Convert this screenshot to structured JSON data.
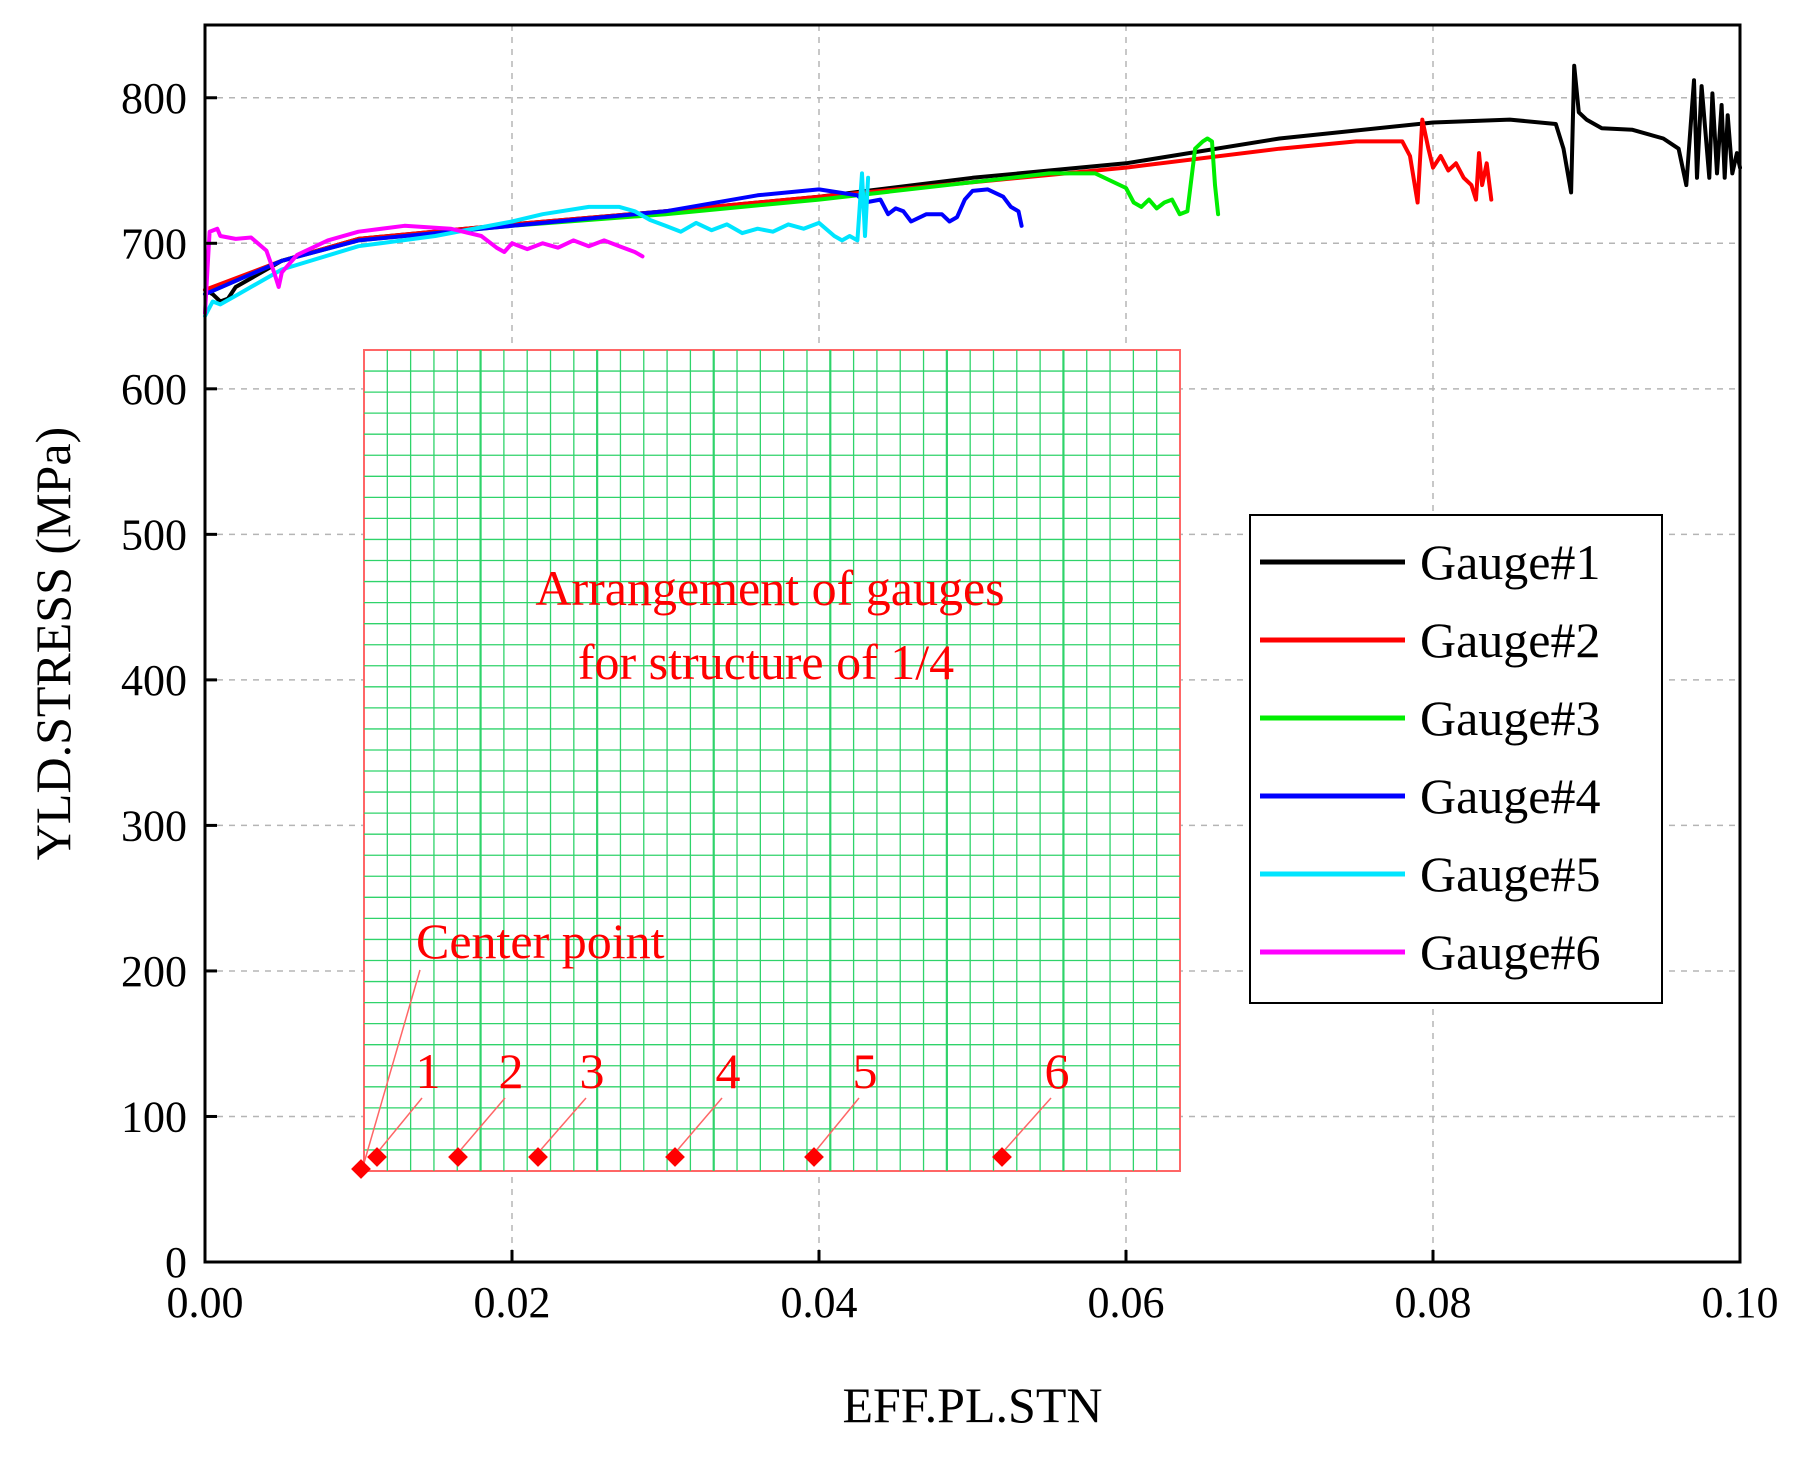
{
  "chart_data": {
    "type": "line",
    "title": "",
    "xlabel": "EFF.PL.STN",
    "ylabel": "YLD.STRESS (MPa)",
    "xlim": [
      0,
      0.1
    ],
    "ylim": [
      0,
      850
    ],
    "xticks": [
      0,
      0.02,
      0.04,
      0.06,
      0.08,
      0.1
    ],
    "xtick_labels": [
      "0.00",
      "0.02",
      "0.04",
      "0.06",
      "0.08",
      "0.10"
    ],
    "yticks": [
      0,
      100,
      200,
      300,
      400,
      500,
      600,
      700,
      800
    ],
    "ytick_labels": [
      "0",
      "100",
      "200",
      "300",
      "400",
      "500",
      "600",
      "700",
      "800"
    ],
    "grid": true,
    "legend_position": "right",
    "series": [
      {
        "name": "Gauge#1",
        "color": "#000000",
        "x": [
          0,
          0.0005,
          0.001,
          0.0015,
          0.002,
          0.005,
          0.01,
          0.02,
          0.03,
          0.04,
          0.05,
          0.06,
          0.07,
          0.08,
          0.085,
          0.088,
          0.0885,
          0.089,
          0.0892,
          0.0895,
          0.09,
          0.091,
          0.093,
          0.095,
          0.096,
          0.0965,
          0.097,
          0.0972,
          0.0975,
          0.098,
          0.0982,
          0.0985,
          0.0988,
          0.099,
          0.0992,
          0.0995,
          0.0998,
          0.1
        ],
        "y": [
          668,
          665,
          660,
          662,
          670,
          688,
          703,
          713,
          722,
          732,
          745,
          755,
          772,
          783,
          785,
          782,
          765,
          735,
          822,
          790,
          785,
          779,
          778,
          772,
          765,
          740,
          812,
          745,
          808,
          745,
          803,
          748,
          795,
          745,
          788,
          748,
          762,
          752
        ]
      },
      {
        "name": "Gauge#2",
        "color": "#ff0000",
        "x": [
          0,
          0.005,
          0.01,
          0.02,
          0.03,
          0.04,
          0.05,
          0.06,
          0.07,
          0.075,
          0.078,
          0.0785,
          0.079,
          0.0793,
          0.0797,
          0.08,
          0.0805,
          0.081,
          0.0815,
          0.082,
          0.0825,
          0.0828,
          0.083,
          0.0832,
          0.0835,
          0.0838
        ],
        "y": [
          668,
          688,
          703,
          713,
          722,
          732,
          742,
          752,
          765,
          770,
          770,
          760,
          728,
          785,
          765,
          752,
          760,
          750,
          755,
          745,
          740,
          730,
          762,
          740,
          755,
          730
        ]
      },
      {
        "name": "Gauge#3",
        "color": "#00ee00",
        "x": [
          0,
          0.005,
          0.01,
          0.02,
          0.03,
          0.04,
          0.05,
          0.055,
          0.058,
          0.06,
          0.0605,
          0.061,
          0.0615,
          0.062,
          0.0625,
          0.063,
          0.0635,
          0.064,
          0.0645,
          0.065,
          0.0653,
          0.0656,
          0.0658,
          0.066
        ],
        "y": [
          665,
          688,
          702,
          712,
          720,
          730,
          742,
          748,
          748,
          738,
          728,
          725,
          730,
          724,
          728,
          730,
          720,
          722,
          765,
          770,
          772,
          770,
          740,
          720
        ]
      },
      {
        "name": "Gauge#4",
        "color": "#0000ff",
        "x": [
          0,
          0.005,
          0.01,
          0.02,
          0.03,
          0.036,
          0.04,
          0.0425,
          0.043,
          0.044,
          0.0445,
          0.045,
          0.0455,
          0.046,
          0.047,
          0.048,
          0.0485,
          0.049,
          0.0495,
          0.05,
          0.051,
          0.052,
          0.0525,
          0.053,
          0.0532
        ],
        "y": [
          665,
          688,
          702,
          712,
          722,
          733,
          737,
          733,
          728,
          730,
          720,
          724,
          722,
          715,
          720,
          720,
          715,
          718,
          730,
          736,
          737,
          732,
          725,
          722,
          712
        ]
      },
      {
        "name": "Gauge#5",
        "color": "#00e5ff",
        "x": [
          0,
          0.0005,
          0.001,
          0.002,
          0.005,
          0.01,
          0.015,
          0.02,
          0.022,
          0.025,
          0.027,
          0.028,
          0.029,
          0.03,
          0.031,
          0.032,
          0.033,
          0.034,
          0.035,
          0.036,
          0.037,
          0.038,
          0.039,
          0.04,
          0.041,
          0.0415,
          0.042,
          0.0425,
          0.0428,
          0.043,
          0.0432
        ],
        "y": [
          650,
          660,
          658,
          664,
          682,
          698,
          705,
          715,
          720,
          725,
          725,
          722,
          716,
          712,
          708,
          714,
          709,
          713,
          707,
          710,
          708,
          713,
          710,
          714,
          705,
          702,
          705,
          702,
          748,
          705,
          745
        ]
      },
      {
        "name": "Gauge#6",
        "color": "#ff00ff",
        "x": [
          0,
          0.0003,
          0.0008,
          0.001,
          0.002,
          0.003,
          0.004,
          0.0045,
          0.0048,
          0.005,
          0.006,
          0.008,
          0.01,
          0.013,
          0.016,
          0.018,
          0.019,
          0.0195,
          0.02,
          0.021,
          0.022,
          0.023,
          0.024,
          0.025,
          0.026,
          0.027,
          0.028,
          0.0285
        ],
        "y": [
          652,
          708,
          710,
          705,
          703,
          704,
          695,
          680,
          670,
          680,
          692,
          702,
          708,
          712,
          710,
          705,
          697,
          694,
          700,
          696,
          700,
          697,
          702,
          698,
          702,
          698,
          694,
          691
        ]
      }
    ]
  },
  "inset": {
    "title_line1": "Arrangement of gauges",
    "title_line2": "for structure of 1/4",
    "center_label": "Center point",
    "gauge_labels": [
      "1",
      "2",
      "3",
      "4",
      "5",
      "6"
    ]
  }
}
